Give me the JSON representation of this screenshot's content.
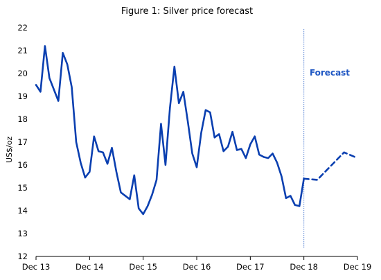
{
  "chart_data": {
    "type": "line",
    "title": "Figure 1: Silver price forecast",
    "ylabel": "US$/oz",
    "xlabel": "",
    "ylim": [
      12,
      22
    ],
    "yticks": [
      12,
      13,
      14,
      15,
      16,
      17,
      18,
      19,
      20,
      21,
      22
    ],
    "xlim": [
      "2013-12",
      "2019-12"
    ],
    "xticks": [
      "Dec 13",
      "Dec 14",
      "Dec 15",
      "Dec 16",
      "Dec 17",
      "Dec 18",
      "Dec 19"
    ],
    "forecast_start": "2018-12",
    "forecast_label": "Forecast",
    "grid": false,
    "colors": {
      "line": "#0a3fb0",
      "divider": "#5b86d6",
      "label": "#1f57c3"
    },
    "series": [
      {
        "style": "solid",
        "x": [
          "2013-12",
          "2014-01",
          "2014-02",
          "2014-03",
          "2014-04",
          "2014-05",
          "2014-06",
          "2014-07",
          "2014-08",
          "2014-09",
          "2014-10",
          "2014-11",
          "2014-12",
          "2015-01",
          "2015-02",
          "2015-03",
          "2015-04",
          "2015-05",
          "2015-06",
          "2015-07",
          "2015-08",
          "2015-09",
          "2015-10",
          "2015-11",
          "2015-12",
          "2016-01",
          "2016-02",
          "2016-03",
          "2016-04",
          "2016-05",
          "2016-06",
          "2016-07",
          "2016-08",
          "2016-09",
          "2016-10",
          "2016-11",
          "2016-12",
          "2017-01",
          "2017-02",
          "2017-03",
          "2017-04",
          "2017-05",
          "2017-06",
          "2017-07",
          "2017-08",
          "2017-09",
          "2017-10",
          "2017-11",
          "2017-12",
          "2018-01",
          "2018-02",
          "2018-03",
          "2018-04",
          "2018-05",
          "2018-06",
          "2018-07",
          "2018-08",
          "2018-09",
          "2018-10",
          "2018-11",
          "2018-12"
        ],
        "values": [
          19.5,
          19.2,
          21.2,
          19.8,
          19.3,
          18.8,
          20.9,
          20.4,
          19.4,
          17.0,
          16.1,
          15.45,
          15.7,
          17.25,
          16.6,
          16.55,
          16.05,
          16.75,
          15.7,
          14.8,
          14.65,
          14.5,
          15.55,
          14.1,
          13.85,
          14.2,
          14.7,
          15.35,
          17.8,
          16.0,
          18.5,
          20.3,
          18.7,
          19.2,
          17.9,
          16.5,
          15.9,
          17.4,
          18.4,
          18.3,
          17.2,
          17.35,
          16.6,
          16.8,
          17.45,
          16.65,
          16.7,
          16.3,
          16.9,
          17.25,
          16.45,
          16.35,
          16.3,
          16.5,
          16.1,
          15.5,
          14.55,
          14.65,
          14.25,
          14.2,
          15.4
        ]
      },
      {
        "style": "dashed",
        "x": [
          "2018-12",
          "2019-03",
          "2019-09",
          "2019-12"
        ],
        "values": [
          15.4,
          15.35,
          16.55,
          16.3
        ]
      }
    ]
  }
}
